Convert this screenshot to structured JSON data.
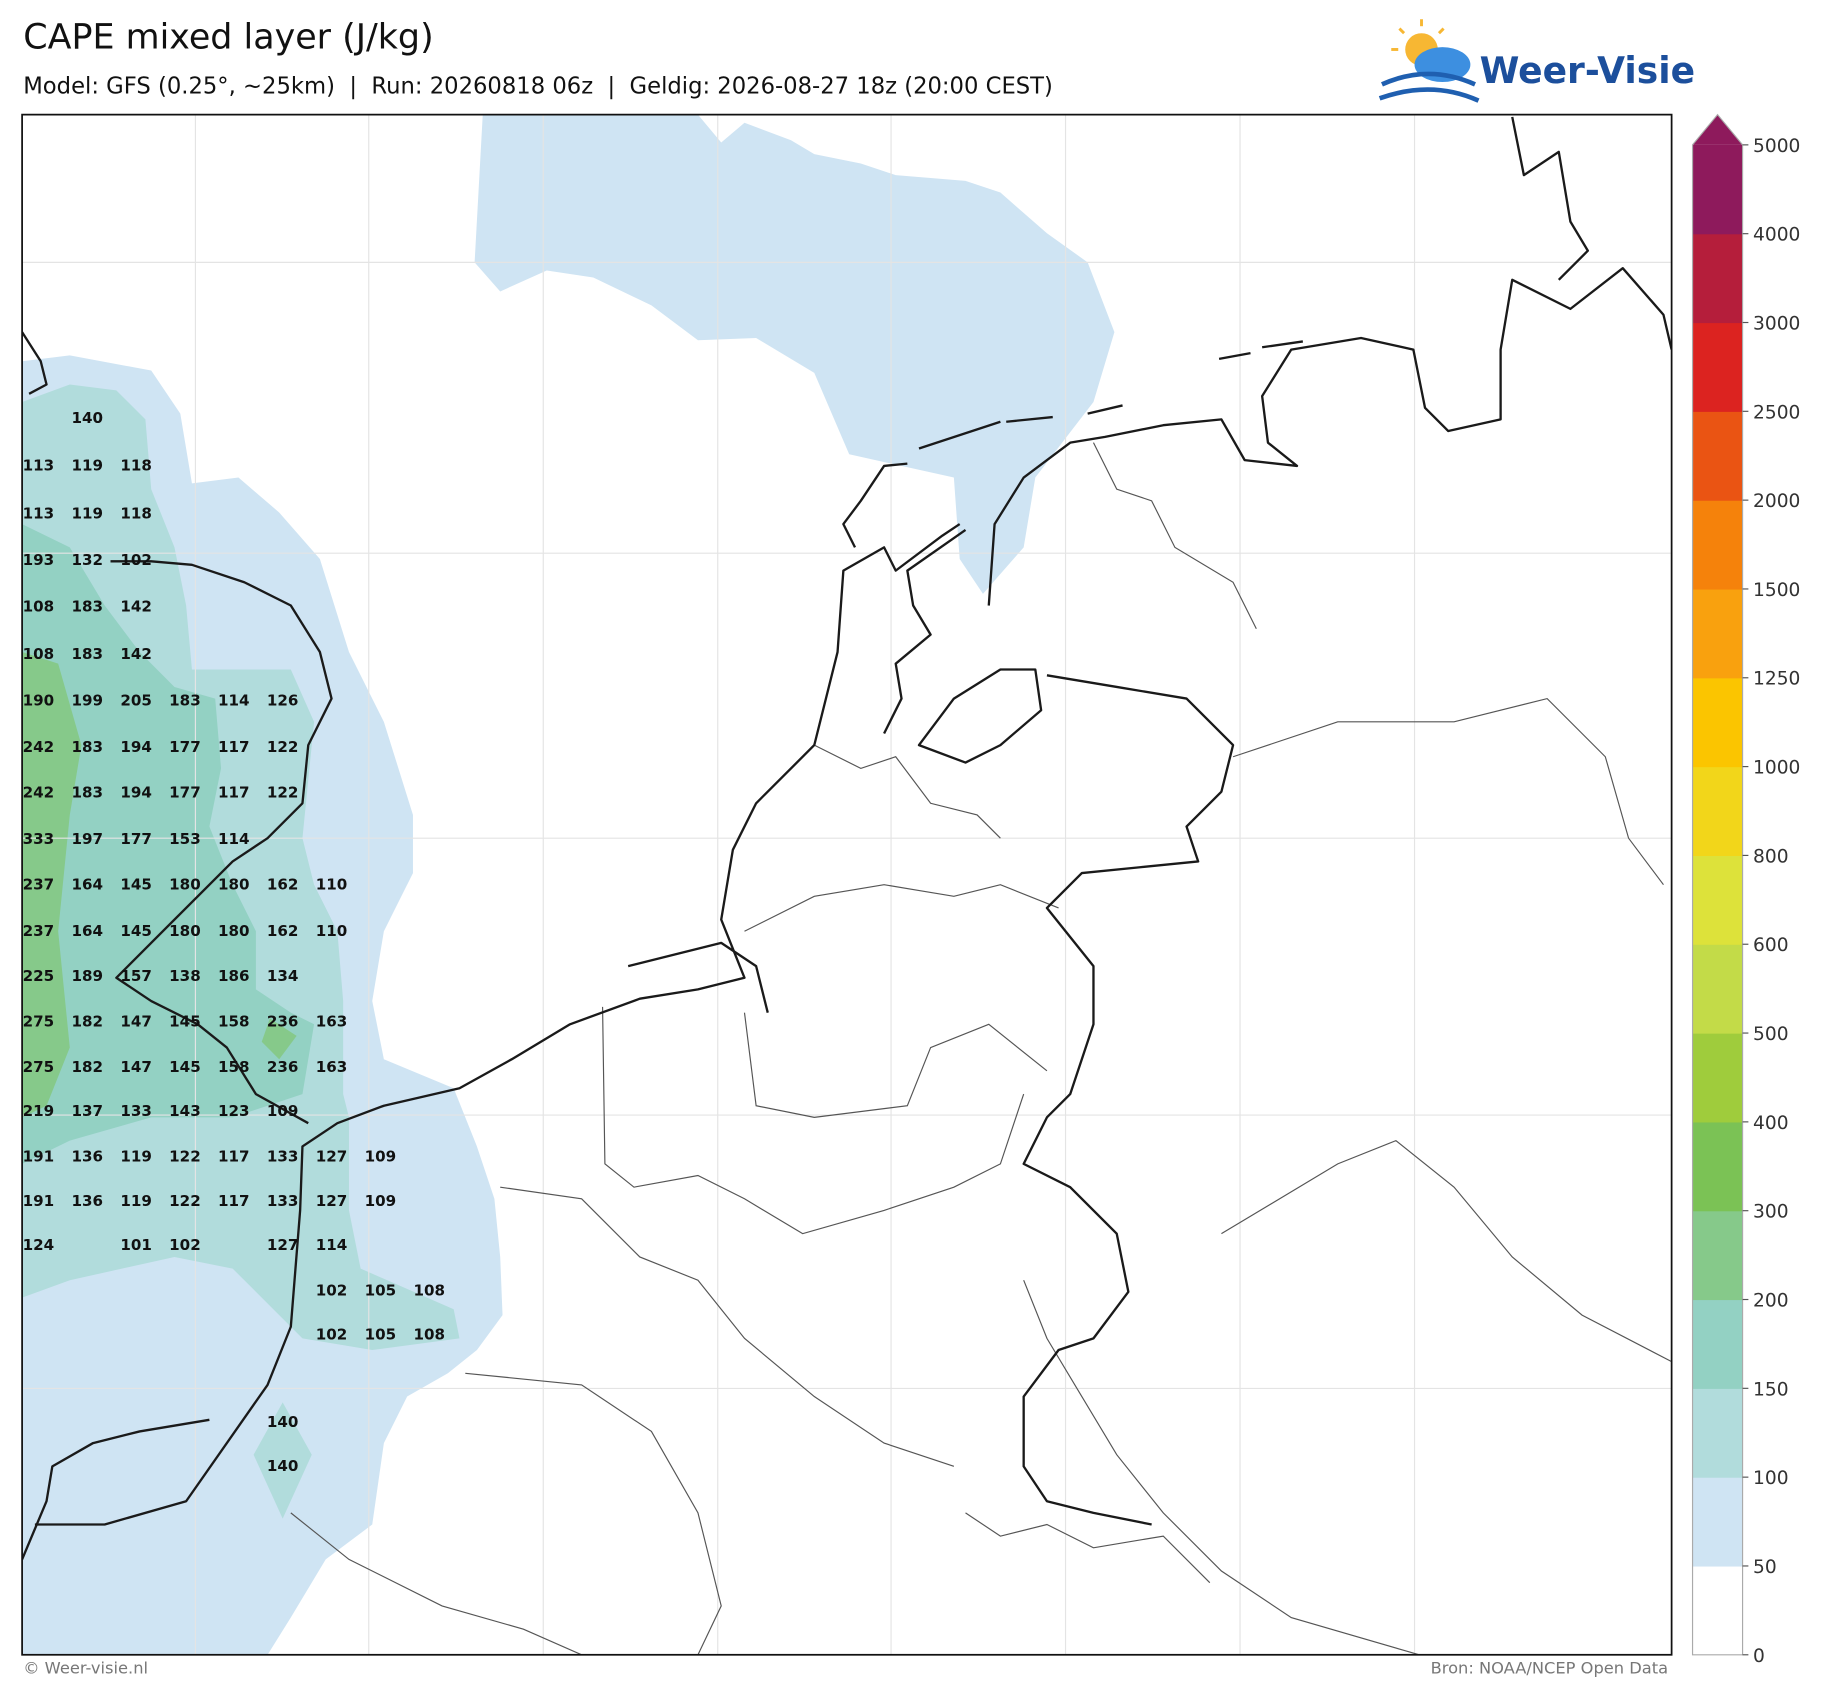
{
  "title": "CAPE mixed layer (J/kg)",
  "subtitle": "Model: GFS (0.25°, ~25km)  |  Run: 20260818 06z  |  Geldig: 2026-08-27 18z (20:00 CEST)",
  "logo": "Weer-Visie",
  "copyright": "© Weer-visie.nl",
  "source": "Bron: NOAA/NCEP Open Data",
  "colorbar": {
    "levels": [
      0,
      50,
      100,
      150,
      200,
      300,
      400,
      500,
      600,
      800,
      1000,
      1250,
      1500,
      2000,
      2500,
      3000,
      4000,
      5000
    ],
    "colors": [
      "#ffffff",
      "#cfe4f3",
      "#b1dcdc",
      "#93d1c3",
      "#86c98a",
      "#7bc255",
      "#9fcc3c",
      "#c3db48",
      "#dde23a",
      "#f2d61a",
      "#fbc500",
      "#f9a10e",
      "#f5820b",
      "#ea5413",
      "#dc2320",
      "#b51e3b",
      "#8e1a5c"
    ]
  },
  "map_labels": [
    [
      null,
      140
    ],
    [
      113,
      119,
      118
    ],
    [
      113,
      119,
      118
    ],
    [
      193,
      132,
      102
    ],
    [
      108,
      183,
      142
    ],
    [
      108,
      183,
      142
    ],
    [
      190,
      199,
      205,
      183,
      114,
      126
    ],
    [
      242,
      183,
      194,
      177,
      117,
      122
    ],
    [
      242,
      183,
      194,
      177,
      117,
      122
    ],
    [
      333,
      197,
      177,
      153,
      114
    ],
    [
      237,
      164,
      145,
      180,
      180,
      162,
      110
    ],
    [
      237,
      164,
      145,
      180,
      180,
      162,
      110
    ],
    [
      225,
      189,
      157,
      138,
      186,
      134
    ],
    [
      275,
      182,
      147,
      145,
      158,
      236,
      163
    ],
    [
      275,
      182,
      147,
      145,
      158,
      236,
      163
    ],
    [
      219,
      137,
      133,
      143,
      123,
      109
    ],
    [
      191,
      136,
      119,
      122,
      117,
      133,
      127,
      109
    ],
    [
      191,
      136,
      119,
      122,
      117,
      133,
      127,
      109
    ],
    [
      124,
      null,
      101,
      102,
      null,
      127,
      114
    ],
    [
      null,
      null,
      null,
      null,
      null,
      null,
      102,
      105,
      108
    ],
    [
      null,
      null,
      null,
      null,
      null,
      null,
      102,
      105,
      108
    ],
    [
      null,
      null,
      null,
      null,
      null,
      140
    ],
    [
      null,
      null,
      null,
      null,
      null,
      140
    ]
  ]
}
